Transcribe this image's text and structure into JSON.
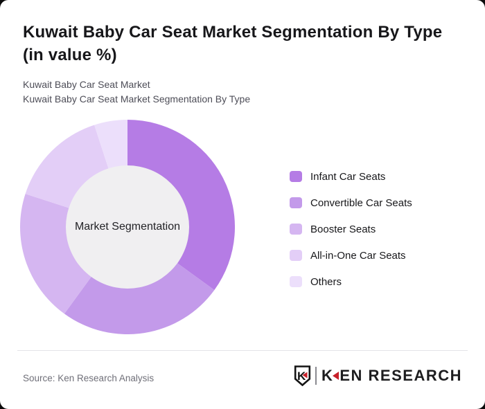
{
  "page": {
    "title": "Kuwait Baby Car Seat Market Segmentation By Type (in value %)",
    "subtitle_lines": [
      "Kuwait Baby Car Seat Market",
      "Kuwait Baby Car Seat Market Segmentation By Type"
    ]
  },
  "chart_data": {
    "type": "pie",
    "variant": "donut",
    "title": "Kuwait Baby Car Seat Market Segmentation By Type (in value %)",
    "center_label": "Market Segmentation",
    "categories": [
      "Infant Car Seats",
      "Convertible Car Seats",
      "Booster Seats",
      "All-in-One Car Seats",
      "Others"
    ],
    "values": [
      35,
      25,
      20,
      15,
      5
    ],
    "unit": "%",
    "colors": [
      "#b57ce5",
      "#c39aea",
      "#d5b6f1",
      "#e3cef7",
      "#ecdffb"
    ],
    "start_angle_deg": 0,
    "direction": "clockwise",
    "inner_radius_ratio": 0.574,
    "hole_fill": "#f0eff1",
    "legend_position": "right",
    "data_labels": false
  },
  "footer": {
    "source_label": "Source: Ken Research Analysis",
    "brand": {
      "k": "K",
      "rest": "EN RESEARCH",
      "accent_color": "#c8202a",
      "shield_k": "K"
    }
  }
}
